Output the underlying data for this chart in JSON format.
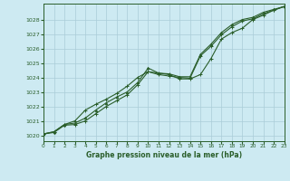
{
  "title": "Graphe pression niveau de la mer (hPa)",
  "bg_color": "#cdeaf2",
  "grid_color": "#aaccd8",
  "line_color": "#2a5e2a",
  "xlim": [
    0,
    23
  ],
  "ylim": [
    1019.6,
    1029.1
  ],
  "yticks": [
    1020,
    1021,
    1022,
    1023,
    1024,
    1025,
    1026,
    1027,
    1028
  ],
  "xticks": [
    0,
    1,
    2,
    3,
    4,
    5,
    6,
    7,
    8,
    9,
    10,
    11,
    12,
    13,
    14,
    15,
    16,
    17,
    18,
    19,
    20,
    21,
    22,
    23
  ],
  "line_upper_x": [
    0,
    1,
    2,
    3,
    4,
    5,
    6,
    7,
    8,
    9,
    10,
    11,
    12,
    13,
    14,
    15,
    16,
    17,
    18,
    19,
    20,
    21,
    22,
    23
  ],
  "line_upper_y": [
    1020.1,
    1020.25,
    1020.75,
    1020.85,
    1021.2,
    1021.75,
    1022.25,
    1022.65,
    1023.0,
    1023.65,
    1024.65,
    1024.3,
    1024.25,
    1024.05,
    1024.05,
    1025.6,
    1026.3,
    1027.1,
    1027.65,
    1028.0,
    1028.15,
    1028.5,
    1028.7,
    1028.9
  ],
  "line_mid_x": [
    0,
    1,
    2,
    3,
    4,
    5,
    6,
    7,
    8,
    9,
    10,
    11,
    12,
    13,
    14,
    15,
    16,
    17,
    18,
    19,
    20,
    21,
    22,
    23
  ],
  "line_mid_y": [
    1020.1,
    1020.25,
    1020.75,
    1021.0,
    1021.75,
    1022.15,
    1022.5,
    1022.9,
    1023.4,
    1024.0,
    1024.4,
    1024.3,
    1024.2,
    1023.9,
    1023.9,
    1024.2,
    1025.3,
    1026.65,
    1027.1,
    1027.4,
    1028.0,
    1028.3,
    1028.65,
    1028.9
  ],
  "line_lower_x": [
    0,
    1,
    2,
    3,
    4,
    5,
    6,
    7,
    8,
    9,
    10,
    11,
    12,
    13,
    14,
    15,
    16,
    17,
    18,
    19,
    20,
    21,
    22,
    23
  ],
  "line_lower_y": [
    1020.1,
    1020.2,
    1020.7,
    1020.75,
    1021.0,
    1021.5,
    1022.0,
    1022.4,
    1022.8,
    1023.5,
    1024.4,
    1024.2,
    1024.1,
    1024.0,
    1023.95,
    1025.5,
    1026.15,
    1026.95,
    1027.5,
    1027.9,
    1028.05,
    1028.4,
    1028.65,
    1028.9
  ]
}
